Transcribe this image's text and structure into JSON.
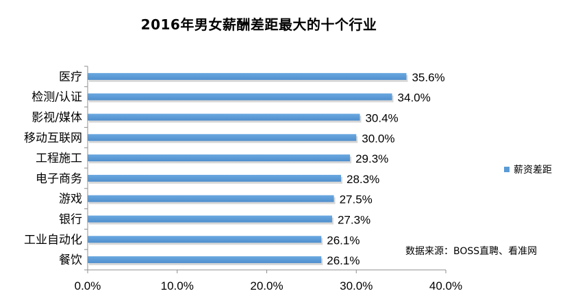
{
  "chart_data": {
    "type": "bar",
    "orientation": "horizontal",
    "title": "2016年男女薪酬差距最大的十个行业",
    "categories": [
      "医疗",
      "检测/认证",
      "影视/媒体",
      "移动互联网",
      "工程施工",
      "电子商务",
      "游戏",
      "银行",
      "工业自动化",
      "餐饮"
    ],
    "series": [
      {
        "name": "薪资差距",
        "values": [
          35.6,
          34.0,
          30.4,
          30.0,
          29.3,
          28.3,
          27.5,
          27.3,
          26.1,
          26.1
        ],
        "value_labels": [
          "35.6%",
          "34.0%",
          "30.4%",
          "30.0%",
          "29.3%",
          "28.3%",
          "27.5%",
          "27.3%",
          "26.1%",
          "26.1%"
        ],
        "color": "#5b9bd5"
      }
    ],
    "xlim": [
      0,
      40
    ],
    "x_ticks": [
      0,
      10,
      20,
      30,
      40
    ],
    "x_tick_labels": [
      "0.0%",
      "10.0%",
      "20.0%",
      "30.0%",
      "40.0%"
    ],
    "grid": false,
    "legend_position": "right"
  },
  "source_note": "数据来源：BOSS直聘、看准网"
}
